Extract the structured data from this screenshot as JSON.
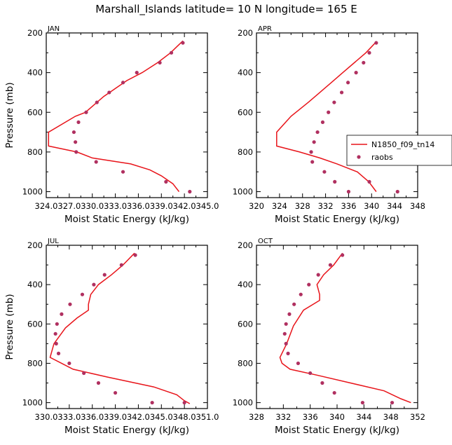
{
  "title": "Marshall_Islands  latitude= 10 N longitude= 165 E",
  "legend": {
    "model_label": "N1850_f09_tn14",
    "obs_label": "raobs"
  },
  "colors": {
    "model": "#e8141a",
    "obs": "#b03060",
    "axis": "#000000"
  },
  "chart_data": [
    {
      "type": "line",
      "panel": "JAN",
      "xlabel": "Moist Static Energy (kJ/kg)",
      "ylabel": "Pressure (mb)",
      "xlim": [
        324.0,
        345.0
      ],
      "ylim": [
        1030,
        200
      ],
      "xticks": [
        324.0,
        327.0,
        330.0,
        333.0,
        336.0,
        339.0,
        342.0,
        345.0
      ],
      "xtick_labels": [
        "324.0",
        "327.0",
        "330.0",
        "333.0",
        "336.0",
        "339.0",
        "342.0",
        "345.0"
      ],
      "yticks": [
        200,
        400,
        600,
        800,
        1000
      ],
      "series": [
        {
          "name": "N1850_f09_tn14",
          "style": "line",
          "x": [
            341.8,
            340.2,
            338.5,
            336.5,
            334.5,
            333.0,
            331.5,
            330.3,
            329.1,
            327.8,
            324.3,
            324.3,
            328.0,
            330.0,
            335.0,
            337.5,
            339.0,
            340.5,
            341.3
          ],
          "y": [
            240,
            300,
            350,
            400,
            440,
            480,
            520,
            560,
            600,
            620,
            700,
            770,
            800,
            830,
            860,
            890,
            920,
            960,
            1000
          ]
        },
        {
          "name": "raobs",
          "style": "points",
          "x": [
            341.8,
            340.3,
            338.8,
            335.8,
            334.0,
            332.2,
            330.6,
            329.2,
            328.2,
            327.6,
            327.8,
            327.9,
            330.5,
            334.0,
            339.6,
            342.7
          ],
          "y": [
            250,
            300,
            350,
            400,
            450,
            500,
            550,
            600,
            650,
            700,
            750,
            800,
            850,
            900,
            950,
            1000
          ]
        }
      ]
    },
    {
      "type": "line",
      "panel": "APR",
      "xlabel": "Moist Static Energy (kJ/kg)",
      "ylabel": "",
      "xlim": [
        320,
        348
      ],
      "ylim": [
        1030,
        200
      ],
      "xticks": [
        320,
        324,
        328,
        332,
        336,
        340,
        344,
        348
      ],
      "xtick_labels": [
        "320",
        "324",
        "328",
        "332",
        "336",
        "340",
        "344",
        "348"
      ],
      "yticks": [
        200,
        400,
        600,
        800,
        1000
      ],
      "series": [
        {
          "name": "N1850_f09_tn14",
          "style": "line",
          "x": [
            340.8,
            339.0,
            337.0,
            335.0,
            333.0,
            331.0,
            329.0,
            326.0,
            323.5,
            323.5,
            327.5,
            331.0,
            334.0,
            337.5,
            339.5,
            340.8
          ],
          "y": [
            245,
            300,
            350,
            400,
            450,
            500,
            550,
            620,
            700,
            770,
            800,
            830,
            860,
            900,
            950,
            1000
          ]
        },
        {
          "name": "raobs",
          "style": "points",
          "x": [
            340.8,
            339.6,
            338.6,
            337.3,
            335.9,
            334.8,
            333.5,
            332.5,
            331.5,
            330.6,
            330.0,
            329.5,
            329.7,
            331.8,
            333.6,
            336.0,
            339.6,
            344.5
          ],
          "y": [
            250,
            300,
            350,
            400,
            450,
            500,
            550,
            600,
            650,
            700,
            750,
            800,
            850,
            900,
            950,
            1000,
            950,
            1000
          ]
        }
      ]
    },
    {
      "type": "line",
      "panel": "JUL",
      "xlabel": "Moist Static Energy (kJ/kg)",
      "ylabel": "Pressure (mb)",
      "xlim": [
        330.0,
        351.0
      ],
      "ylim": [
        1030,
        200
      ],
      "xticks": [
        330.0,
        333.0,
        336.0,
        339.0,
        342.0,
        345.0,
        348.0,
        351.0
      ],
      "xtick_labels": [
        "330.0",
        "333.0",
        "336.0",
        "339.0",
        "342.0",
        "345.0",
        "348.0",
        "351.0"
      ],
      "yticks": [
        200,
        400,
        600,
        800,
        1000
      ],
      "series": [
        {
          "name": "N1850_f09_tn14",
          "style": "line",
          "x": [
            341.5,
            340.0,
            338.5,
            336.8,
            335.8,
            335.5,
            335.5,
            334.0,
            332.5,
            331.0,
            330.5,
            332.0,
            333.5,
            338.0,
            344.0,
            347.0,
            348.0,
            348.7
          ],
          "y": [
            240,
            300,
            350,
            400,
            450,
            500,
            530,
            570,
            620,
            700,
            770,
            800,
            830,
            870,
            920,
            960,
            990,
            1005
          ]
        },
        {
          "name": "raobs",
          "style": "points",
          "x": [
            341.6,
            339.8,
            337.6,
            336.2,
            334.7,
            333.1,
            332.0,
            331.4,
            331.2,
            331.3,
            331.6,
            333.0,
            334.9,
            336.8,
            339.0,
            343.8,
            348.0
          ],
          "y": [
            250,
            300,
            350,
            400,
            450,
            500,
            550,
            600,
            650,
            700,
            750,
            800,
            850,
            900,
            950,
            1000,
            1000
          ]
        }
      ]
    },
    {
      "type": "line",
      "panel": "OCT",
      "xlabel": "Moist Static Energy (kJ/kg)",
      "ylabel": "",
      "xlim": [
        328,
        352
      ],
      "ylim": [
        1030,
        200
      ],
      "xticks": [
        328,
        332,
        336,
        340,
        344,
        348,
        352
      ],
      "xtick_labels": [
        "328",
        "332",
        "336",
        "340",
        "344",
        "348",
        "352"
      ],
      "yticks": [
        200,
        400,
        600,
        800,
        1000
      ],
      "series": [
        {
          "name": "N1850_f09_tn14",
          "style": "line",
          "x": [
            340.8,
            339.5,
            338.0,
            337.0,
            337.4,
            337.4,
            335.0,
            333.5,
            332.5,
            331.5,
            331.8,
            333.0,
            337.0,
            342.0,
            347.0,
            349.5,
            351.0
          ],
          "y": [
            240,
            300,
            350,
            400,
            450,
            480,
            530,
            610,
            700,
            770,
            800,
            830,
            860,
            900,
            940,
            980,
            1000
          ]
        },
        {
          "name": "raobs",
          "style": "points",
          "x": [
            340.8,
            339.0,
            337.2,
            335.8,
            334.6,
            333.6,
            332.9,
            332.4,
            332.2,
            332.4,
            332.7,
            334.2,
            336.0,
            337.8,
            339.6,
            343.8,
            348.2
          ],
          "y": [
            250,
            300,
            350,
            400,
            450,
            500,
            550,
            600,
            650,
            700,
            750,
            800,
            850,
            900,
            950,
            1000,
            1000
          ]
        }
      ]
    }
  ]
}
